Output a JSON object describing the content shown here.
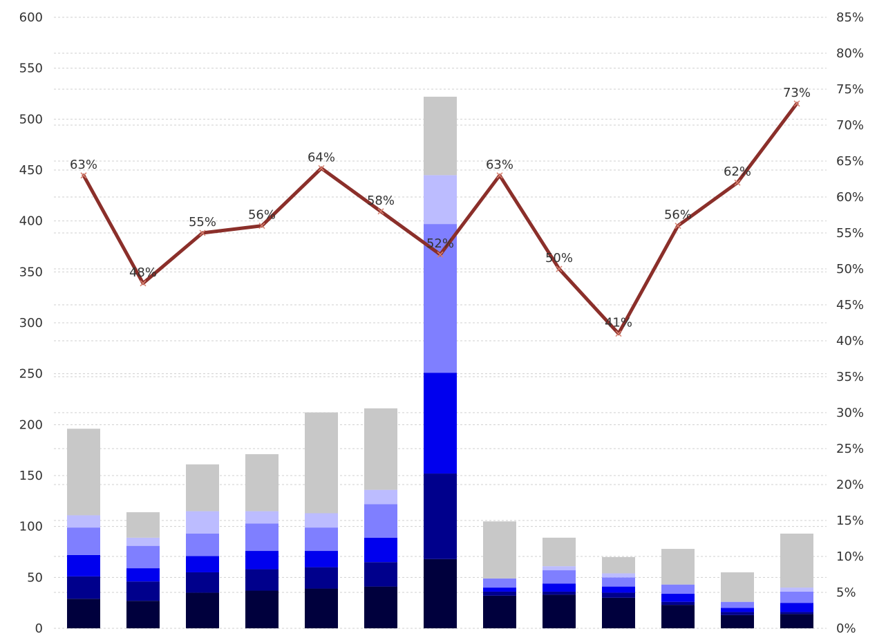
{
  "chart_data": {
    "type": "bar",
    "stacked": true,
    "categories": [
      "",
      "",
      "",
      "",
      "",
      "",
      "",
      "",
      "",
      "",
      "",
      "",
      ""
    ],
    "series": [
      {
        "color": "#00003d",
        "values": [
          29,
          27,
          35,
          37,
          39,
          41,
          68,
          32,
          33,
          30,
          23,
          13,
          14
        ]
      },
      {
        "color": "#00008c",
        "values": [
          22,
          19,
          20,
          21,
          21,
          24,
          84,
          4,
          3,
          5,
          3,
          3,
          2
        ]
      },
      {
        "color": "#0000ee",
        "values": [
          21,
          13,
          16,
          18,
          16,
          24,
          99,
          4,
          8,
          6,
          8,
          4,
          9
        ]
      },
      {
        "color": "#7f7fff",
        "values": [
          27,
          22,
          22,
          27,
          23,
          33,
          146,
          9,
          13,
          9,
          9,
          6,
          11
        ]
      },
      {
        "color": "#bcbcff",
        "values": [
          12,
          8,
          22,
          12,
          14,
          14,
          48,
          0,
          4,
          4,
          0,
          0,
          4
        ]
      },
      {
        "color": "#c8c8c8",
        "values": [
          85,
          25,
          46,
          56,
          99,
          80,
          77,
          56,
          28,
          16,
          35,
          29,
          53
        ]
      }
    ],
    "line_series": {
      "color": "#8b2f2a",
      "axis": "right",
      "values": [
        63,
        48,
        55,
        56,
        64,
        58,
        52,
        63,
        50,
        41,
        56,
        62,
        73
      ],
      "labels": [
        "63%",
        "48%",
        "55%",
        "56%",
        "64%",
        "58%",
        "52%",
        "63%",
        "50%",
        "41%",
        "56%",
        "62%",
        "73%"
      ]
    },
    "left_axis": {
      "ylim": [
        0,
        600
      ],
      "ticks": [
        0,
        50,
        100,
        150,
        200,
        250,
        300,
        350,
        400,
        450,
        500,
        550,
        600
      ],
      "tick_labels": [
        "0",
        "50",
        "100",
        "150",
        "200",
        "250",
        "300",
        "350",
        "400",
        "450",
        "500",
        "550",
        "600"
      ]
    },
    "right_axis": {
      "ylim": [
        0,
        85
      ],
      "ticks": [
        0,
        5,
        10,
        15,
        20,
        25,
        30,
        35,
        40,
        45,
        50,
        55,
        60,
        65,
        70,
        75,
        80,
        85
      ],
      "tick_labels": [
        "0%",
        "5%",
        "10%",
        "15%",
        "20%",
        "25%",
        "30%",
        "35%",
        "40%",
        "45%",
        "50%",
        "55%",
        "60%",
        "65%",
        "70%",
        "75%",
        "80%",
        "85%"
      ]
    },
    "grid": true,
    "title": "",
    "xlabel": "",
    "ylabel": ""
  }
}
